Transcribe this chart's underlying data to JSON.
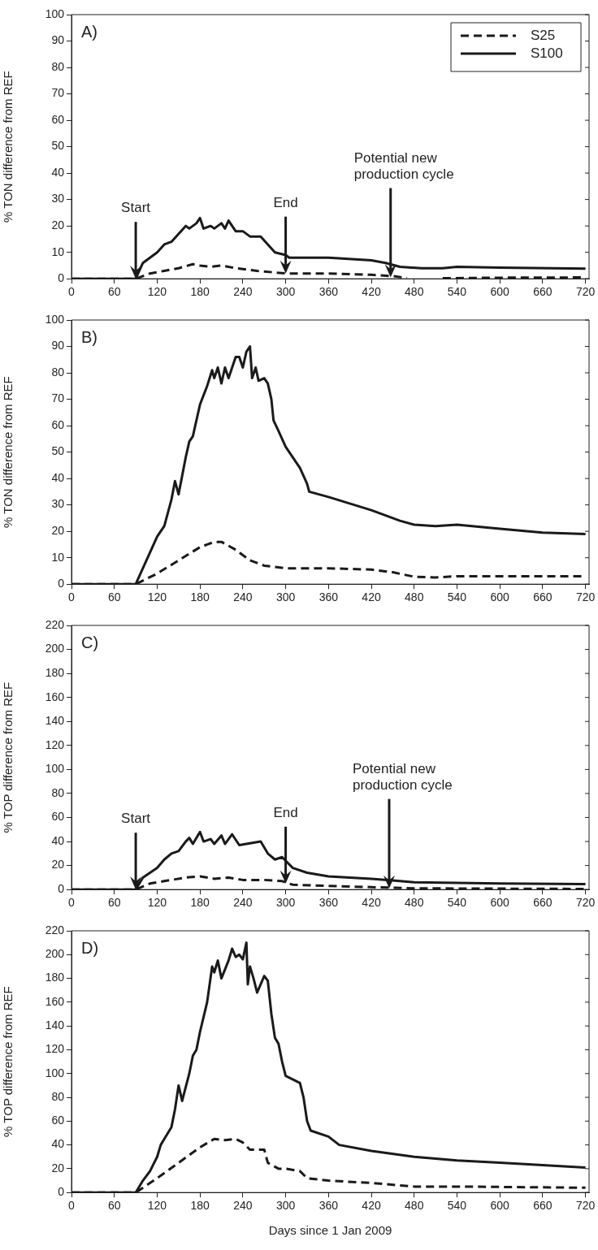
{
  "chart_data": [
    {
      "type": "line",
      "title": "A)",
      "ylabel": "% TON difference from REF",
      "xlim": [
        0,
        725
      ],
      "xticks": [
        0,
        60,
        120,
        180,
        240,
        300,
        360,
        420,
        480,
        540,
        600,
        660,
        720
      ],
      "ylim": [
        0,
        100
      ],
      "yticks": [
        0,
        10,
        20,
        30,
        40,
        50,
        60,
        70,
        80,
        90,
        100
      ],
      "grid": false,
      "legend": "top right",
      "marker": "none",
      "series": [
        {
          "name": "S25",
          "color": "#1a1a1a",
          "line_style": "dashed",
          "x": [
            0,
            90,
            110,
            130,
            150,
            170,
            180,
            195,
            210,
            230,
            260,
            300,
            360,
            420,
            450,
            470,
            480,
            510,
            520,
            600,
            720
          ],
          "values": [
            0,
            0,
            2,
            3,
            4,
            5.5,
            5,
            4.5,
            5,
            4,
            3,
            2,
            2,
            1.5,
            1,
            0.3,
            null,
            null,
            0.2,
            0.4,
            0.5
          ]
        },
        {
          "name": "S100",
          "color": "#1a1a1a",
          "line_style": "solid",
          "x": [
            0,
            90,
            100,
            120,
            130,
            140,
            150,
            160,
            165,
            175,
            180,
            185,
            195,
            200,
            210,
            215,
            220,
            230,
            240,
            250,
            265,
            275,
            285,
            300,
            305,
            360,
            420,
            440,
            460,
            490,
            520,
            540,
            600,
            720
          ],
          "values": [
            0,
            0,
            6,
            10,
            13,
            14,
            17,
            20,
            19,
            21,
            23,
            19,
            20,
            19,
            21,
            19,
            22,
            18,
            18,
            16,
            16,
            13,
            10,
            9,
            8,
            8,
            7,
            6,
            4.5,
            4,
            4,
            4.5,
            4.2,
            3.8
          ]
        }
      ],
      "annotations": [
        {
          "text": "Start",
          "x": 90,
          "y": 0
        },
        {
          "text": "End",
          "x": 300,
          "y": 2
        },
        {
          "text": "Potential new production cycle",
          "x": 447,
          "y": 0.5
        }
      ]
    },
    {
      "type": "line",
      "title": "B)",
      "ylabel": "% TON difference from REF",
      "xlim": [
        0,
        725
      ],
      "xticks": [
        0,
        60,
        120,
        180,
        240,
        300,
        360,
        420,
        480,
        540,
        600,
        660,
        720
      ],
      "ylim": [
        0,
        100
      ],
      "yticks": [
        0,
        10,
        20,
        30,
        40,
        50,
        60,
        70,
        80,
        90,
        100
      ],
      "grid": false,
      "legend": false,
      "marker": "none",
      "series": [
        {
          "color": "#1a1a1a",
          "line_style": "dashed",
          "x": [
            0,
            90,
            120,
            150,
            180,
            200,
            210,
            230,
            250,
            270,
            300,
            360,
            420,
            450,
            480,
            510,
            540,
            600,
            720
          ],
          "values": [
            0,
            0,
            4,
            9,
            14,
            16,
            16,
            13,
            9,
            7,
            6,
            6,
            5.5,
            4.5,
            2.8,
            2.5,
            3,
            3,
            3
          ]
        },
        {
          "color": "#1a1a1a",
          "line_style": "solid",
          "x": [
            0,
            90,
            100,
            110,
            120,
            125,
            130,
            140,
            145,
            150,
            160,
            165,
            170,
            180,
            190,
            197,
            200,
            205,
            210,
            215,
            220,
            230,
            235,
            240,
            245,
            250,
            253,
            258,
            262,
            270,
            275,
            280,
            283,
            290,
            300,
            320,
            330,
            333,
            360,
            420,
            460,
            480,
            510,
            540,
            600,
            660,
            720
          ],
          "values": [
            0,
            0,
            6,
            12,
            18,
            20,
            22,
            32,
            39,
            34,
            48,
            54,
            56,
            68,
            75,
            81,
            78,
            82,
            76,
            82,
            78,
            86,
            86,
            82,
            88,
            90,
            78,
            82,
            77,
            78,
            76,
            70,
            62,
            58,
            52,
            44,
            38,
            35,
            33,
            28,
            24,
            22.5,
            22,
            22.5,
            21,
            19.5,
            19
          ]
        }
      ]
    },
    {
      "type": "line",
      "title": "C)",
      "ylabel": "% TOP difference from REF",
      "xlim": [
        0,
        725
      ],
      "xticks": [
        0,
        60,
        120,
        180,
        240,
        300,
        360,
        420,
        480,
        540,
        600,
        660,
        720
      ],
      "ylim": [
        0,
        220
      ],
      "yticks": [
        0,
        20,
        40,
        60,
        80,
        100,
        120,
        140,
        160,
        180,
        200,
        220
      ],
      "grid": false,
      "legend": false,
      "marker": "none",
      "series": [
        {
          "color": "#1a1a1a",
          "line_style": "dashed",
          "x": [
            0,
            90,
            110,
            130,
            160,
            180,
            200,
            220,
            240,
            270,
            295,
            310,
            360,
            420,
            480,
            720
          ],
          "values": [
            0,
            0,
            5,
            7,
            10,
            11,
            9,
            10,
            8,
            8,
            7,
            4,
            3,
            2,
            1,
            0.5
          ]
        },
        {
          "color": "#1a1a1a",
          "line_style": "solid",
          "x": [
            0,
            90,
            100,
            120,
            130,
            140,
            150,
            160,
            165,
            170,
            180,
            185,
            195,
            200,
            210,
            215,
            225,
            235,
            245,
            265,
            275,
            285,
            295,
            300,
            310,
            330,
            360,
            420,
            450,
            480,
            540,
            600,
            720
          ],
          "values": [
            0,
            0,
            10,
            18,
            25,
            30,
            32,
            40,
            43,
            38,
            48,
            40,
            42,
            38,
            45,
            38,
            46,
            37,
            38,
            40,
            30,
            25,
            27,
            24,
            18,
            14,
            11,
            9,
            7.5,
            6,
            5.5,
            5,
            4.5
          ]
        }
      ],
      "annotations": [
        {
          "text": "Start",
          "x": 90,
          "y": 0
        },
        {
          "text": "End",
          "x": 300,
          "y": 5
        },
        {
          "text": "Potential new production cycle",
          "x": 445,
          "y": 1
        }
      ]
    },
    {
      "type": "line",
      "title": "D)",
      "ylabel": "% TOP difference from REF",
      "xlabel": "Days since 1 Jan 2009",
      "xlim": [
        0,
        725
      ],
      "xticks": [
        0,
        60,
        120,
        180,
        240,
        300,
        360,
        420,
        480,
        540,
        600,
        660,
        720
      ],
      "ylim": [
        0,
        220
      ],
      "yticks": [
        0,
        20,
        40,
        60,
        80,
        100,
        120,
        140,
        160,
        180,
        200,
        220
      ],
      "grid": false,
      "legend": false,
      "marker": "none",
      "series": [
        {
          "color": "#1a1a1a",
          "line_style": "dashed",
          "x": [
            0,
            90,
            120,
            150,
            180,
            200,
            215,
            230,
            240,
            250,
            270,
            275,
            290,
            300,
            320,
            330,
            360,
            420,
            480,
            540,
            720
          ],
          "values": [
            0,
            0,
            12,
            25,
            38,
            45,
            44,
            45,
            42,
            36,
            36,
            25,
            20,
            20,
            18,
            12,
            10,
            8,
            5,
            5,
            4
          ]
        },
        {
          "color": "#1a1a1a",
          "line_style": "solid",
          "x": [
            0,
            90,
            100,
            110,
            120,
            125,
            130,
            140,
            145,
            150,
            155,
            165,
            170,
            175,
            180,
            190,
            197,
            200,
            205,
            210,
            220,
            225,
            230,
            235,
            240,
            245,
            247,
            250,
            255,
            260,
            270,
            275,
            280,
            285,
            290,
            295,
            300,
            320,
            325,
            330,
            335,
            360,
            375,
            420,
            480,
            540,
            600,
            720
          ],
          "values": [
            0,
            0,
            10,
            18,
            30,
            40,
            45,
            55,
            70,
            90,
            77,
            100,
            115,
            120,
            135,
            160,
            190,
            185,
            195,
            180,
            195,
            205,
            198,
            200,
            196,
            210,
            175,
            190,
            180,
            168,
            182,
            178,
            150,
            130,
            125,
            110,
            98,
            92,
            80,
            60,
            52,
            47,
            40,
            35,
            30,
            27,
            25,
            21
          ]
        }
      ]
    }
  ]
}
